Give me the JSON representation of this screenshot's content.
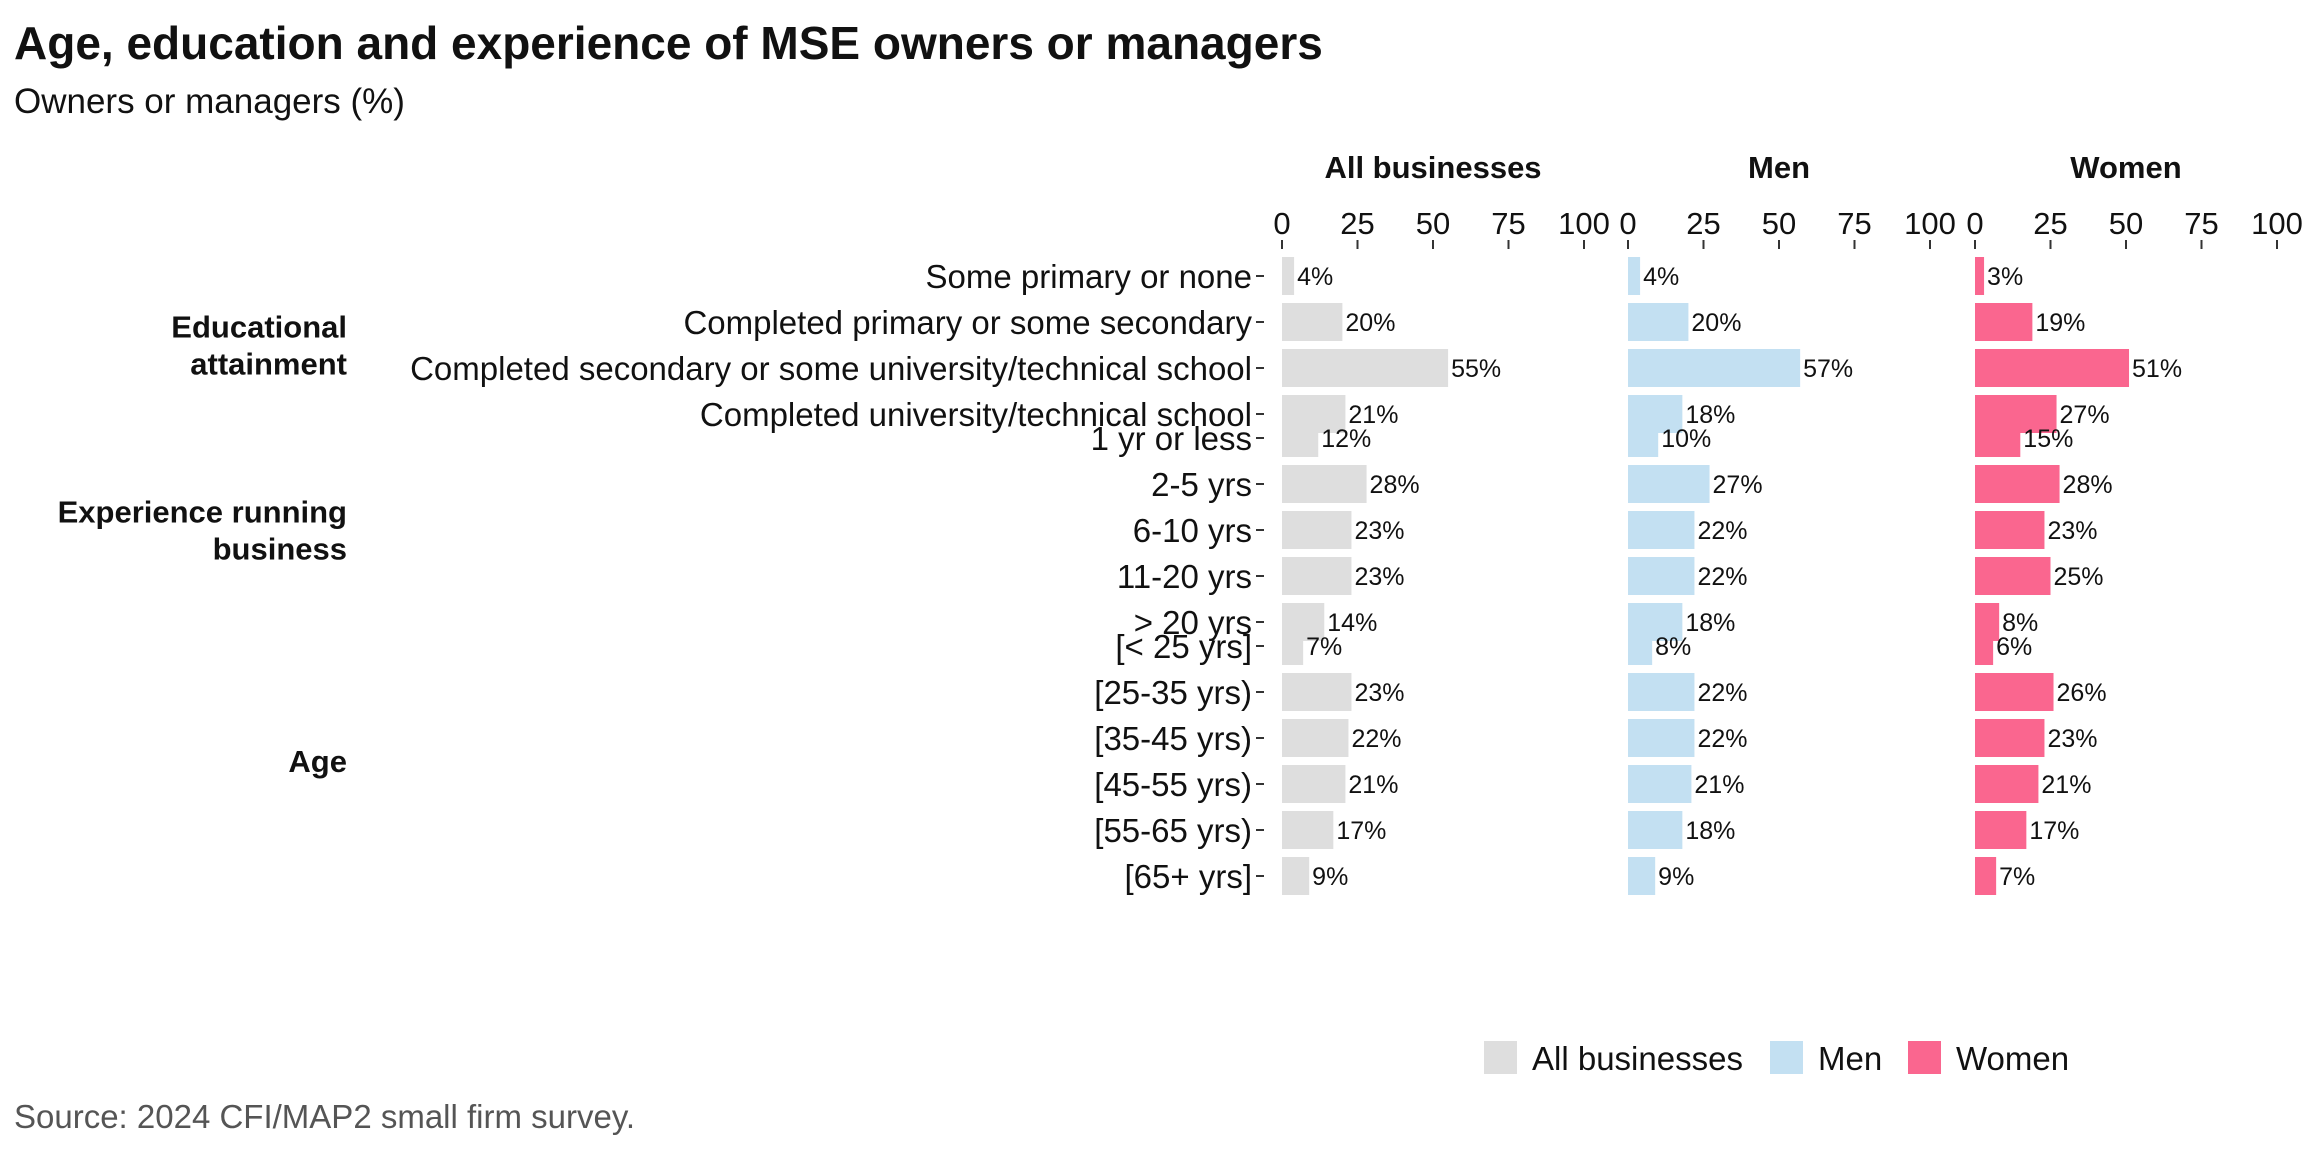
{
  "title": "Age, education and experience of MSE owners or managers",
  "subtitle": "Owners or managers (%)",
  "source": "Source: 2024 CFI/MAP2 small firm survey.",
  "colors": {
    "All businesses": "#dedede",
    "Men": "#c3e0f2",
    "Women": "#fa668f"
  },
  "chart_data": {
    "type": "bar",
    "orientation": "horizontal",
    "facets": [
      "All businesses",
      "Men",
      "Women"
    ],
    "xlim": [
      0,
      100
    ],
    "xticks": [
      "0",
      "25",
      "50",
      "75",
      "100"
    ],
    "groups": [
      {
        "label": "Educational attainment",
        "label_lines": [
          "Educational",
          "attainment"
        ],
        "categories": [
          "Some primary or none",
          "Completed primary or some secondary",
          "Completed secondary or some university/technical school",
          "Completed university/technical school"
        ]
      },
      {
        "label": "Experience running business",
        "label_lines": [
          "Experience running",
          "business"
        ],
        "categories": [
          "1 yr or less",
          "2-5 yrs",
          "6-10 yrs",
          "11-20 yrs",
          "> 20 yrs"
        ]
      },
      {
        "label": "Age",
        "label_lines": [
          "Age"
        ],
        "categories": [
          "[< 25 yrs]",
          "[25-35 yrs)",
          "[35-45 yrs)",
          "[45-55 yrs)",
          "[55-65 yrs)",
          "[65+ yrs]"
        ]
      }
    ],
    "series": [
      {
        "name": "All businesses",
        "values": [
          4,
          20,
          55,
          21,
          12,
          28,
          23,
          23,
          14,
          7,
          23,
          22,
          21,
          17,
          9
        ],
        "labels": [
          "4%",
          "20%",
          "55%",
          "21%",
          "12%",
          "28%",
          "23%",
          "23%",
          "14%",
          "7%",
          "23%",
          "22%",
          "21%",
          "17%",
          "9%"
        ]
      },
      {
        "name": "Men",
        "values": [
          4,
          20,
          57,
          18,
          10,
          27,
          22,
          22,
          18,
          8,
          22,
          22,
          21,
          18,
          9
        ],
        "labels": [
          "4%",
          "20%",
          "57%",
          "18%",
          "10%",
          "27%",
          "22%",
          "22%",
          "18%",
          "8%",
          "22%",
          "22%",
          "21%",
          "18%",
          "9%"
        ]
      },
      {
        "name": "Women",
        "values": [
          3,
          19,
          51,
          27,
          15,
          28,
          23,
          25,
          8,
          6,
          26,
          23,
          21,
          17,
          7
        ],
        "labels": [
          "3%",
          "19%",
          "51%",
          "27%",
          "15%",
          "28%",
          "23%",
          "25%",
          "8%",
          "6%",
          "26%",
          "23%",
          "21%",
          "17%",
          "7%"
        ]
      }
    ],
    "legend": {
      "position": "bottom-right",
      "entries": [
        "All businesses",
        "Men",
        "Women"
      ]
    }
  }
}
